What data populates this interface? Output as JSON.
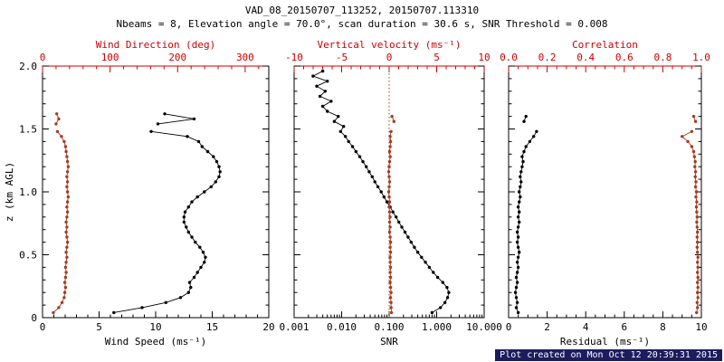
{
  "header": {
    "title": "VAD_08_20150707_113252, 20150707.113310",
    "subtitle": "Nbeams = 8, Elevation angle = 70.0°, scan duration = 30.6 s, SNR Threshold = 0.008"
  },
  "footer": {
    "created": "Plot created on Mon Oct 12 20:39:31 2015"
  },
  "colors": {
    "axis_red": "#cc0000",
    "frame": "#000000",
    "footer_bg": "#1c1c5e",
    "footer_fg": "#ffffff",
    "series": {
      "black": "#000000",
      "red": "#a63a20"
    }
  },
  "chart_data": [
    {
      "type": "line",
      "name": "wind-profile",
      "y_axis": {
        "label": "z (km AGL)",
        "min": 0,
        "max": 2,
        "minor_step": 0.1,
        "show_labels": true,
        "ticks": [
          0,
          0.5,
          1.0,
          1.5,
          2.0
        ],
        "tick_labels": [
          "0",
          "0.5",
          "1.0",
          "1.5",
          "2.0"
        ]
      },
      "bottom_axis": {
        "label": "Wind Speed (ms⁻¹)",
        "scale": "linear",
        "min": 0,
        "max": 20,
        "minor_step": 1,
        "ticks": [
          0,
          5,
          10,
          15,
          20
        ],
        "tick_labels": [
          "0",
          "5",
          "10",
          "15",
          "20"
        ]
      },
      "top_axis": {
        "label": "Wind Direction (deg)",
        "scale": "linear",
        "min": 0,
        "max": 335,
        "minor_step": 20,
        "ticks": [
          0,
          100,
          200,
          300
        ],
        "tick_labels": [
          "0",
          "100",
          "200",
          "300"
        ]
      },
      "series": [
        {
          "name": "wind-speed",
          "axis": "bottom",
          "color_key": "black",
          "z": [
            0.04,
            0.08,
            0.12,
            0.16,
            0.2,
            0.24,
            0.28,
            0.32,
            0.36,
            0.4,
            0.44,
            0.48,
            0.52,
            0.56,
            0.6,
            0.64,
            0.68,
            0.72,
            0.76,
            0.8,
            0.84,
            0.88,
            0.92,
            0.96,
            1.0,
            1.04,
            1.08,
            1.12,
            1.16,
            1.2,
            1.24,
            1.28,
            1.32,
            1.36,
            1.4,
            1.44,
            1.48,
            1.51,
            1.54,
            1.58,
            1.62
          ],
          "values": [
            6.3,
            8.8,
            10.9,
            12.2,
            12.9,
            13.1,
            13.0,
            13.4,
            13.7,
            14.0,
            14.3,
            14.4,
            14.2,
            13.9,
            13.5,
            13.2,
            12.9,
            12.7,
            12.5,
            12.5,
            12.6,
            12.9,
            13.2,
            13.7,
            14.3,
            14.9,
            15.3,
            15.6,
            15.7,
            15.6,
            15.4,
            15.1,
            14.6,
            14.1,
            13.8,
            12.8,
            9.6,
            null,
            10.2,
            13.4,
            10.8
          ]
        },
        {
          "name": "wind-direction",
          "axis": "top",
          "color_key": "red",
          "z": [
            0.04,
            0.08,
            0.12,
            0.16,
            0.2,
            0.24,
            0.28,
            0.32,
            0.36,
            0.4,
            0.44,
            0.48,
            0.52,
            0.56,
            0.6,
            0.64,
            0.68,
            0.72,
            0.76,
            0.8,
            0.84,
            0.88,
            0.92,
            0.96,
            1.0,
            1.04,
            1.08,
            1.12,
            1.16,
            1.2,
            1.24,
            1.28,
            1.32,
            1.36,
            1.4,
            1.44,
            1.48,
            1.51,
            1.54,
            1.58,
            1.62
          ],
          "values": [
            16,
            24,
            29,
            32,
            33,
            34,
            33,
            34,
            35,
            34,
            35,
            36,
            35,
            36,
            37,
            36,
            35,
            36,
            35,
            36,
            37,
            36,
            37,
            38,
            37,
            36,
            37,
            36,
            37,
            38,
            37,
            36,
            35,
            34,
            32,
            28,
            22,
            null,
            20,
            24,
            21
          ]
        }
      ]
    },
    {
      "type": "line",
      "name": "snr-profile",
      "y_axis": {
        "label": "",
        "min": 0,
        "max": 2,
        "minor_step": 0.1,
        "show_labels": false,
        "ticks": [
          0,
          0.5,
          1.0,
          1.5,
          2.0
        ],
        "tick_labels": [
          "0",
          "0.5",
          "1.0",
          "1.5",
          "2.0"
        ]
      },
      "bottom_axis": {
        "label": "SNR",
        "scale": "log",
        "min": 0.001,
        "max": 10,
        "ticks": [
          0.001,
          0.01,
          0.1,
          1,
          10
        ],
        "tick_labels": [
          "0.001",
          "0.010",
          "0.100",
          "1.000",
          "10.000"
        ]
      },
      "top_axis": {
        "label": "Vertical velocity (ms⁻¹)",
        "scale": "linear",
        "min": -10,
        "max": 10,
        "minor_step": 1,
        "ticks": [
          -10,
          -5,
          0,
          5,
          10
        ],
        "tick_labels": [
          "-10",
          "-5",
          "0",
          "5",
          "10"
        ]
      },
      "reference_line": {
        "axis": "top",
        "value": 0,
        "color_key": "red",
        "style": "dotted"
      },
      "series": [
        {
          "name": "snr",
          "axis": "bottom",
          "color_key": "black",
          "z": [
            0.04,
            0.08,
            0.12,
            0.16,
            0.2,
            0.24,
            0.28,
            0.32,
            0.36,
            0.4,
            0.44,
            0.48,
            0.52,
            0.56,
            0.6,
            0.64,
            0.68,
            0.72,
            0.76,
            0.8,
            0.84,
            0.88,
            0.92,
            0.96,
            1.0,
            1.04,
            1.08,
            1.12,
            1.16,
            1.2,
            1.24,
            1.28,
            1.32,
            1.36,
            1.4,
            1.44,
            1.48,
            1.52,
            1.56,
            1.6,
            1.64,
            1.68,
            1.72,
            1.76,
            1.8,
            1.84,
            1.88,
            1.92,
            1.96
          ],
          "values": [
            0.8,
            1.2,
            1.5,
            1.7,
            1.8,
            1.65,
            1.35,
            1.05,
            0.85,
            0.7,
            0.58,
            0.48,
            0.4,
            0.34,
            0.29,
            0.25,
            0.215,
            0.185,
            0.16,
            0.14,
            0.12,
            0.105,
            0.09,
            0.078,
            0.068,
            0.058,
            0.05,
            0.044,
            0.038,
            0.033,
            0.028,
            0.024,
            0.02,
            0.017,
            0.014,
            0.012,
            0.0095,
            0.011,
            0.007,
            0.0085,
            0.005,
            0.004,
            0.006,
            0.0035,
            0.0045,
            0.003,
            0.005,
            0.0025,
            0.004
          ]
        },
        {
          "name": "vertical-velocity",
          "axis": "top",
          "color_key": "red",
          "z": [
            0.04,
            0.08,
            0.12,
            0.16,
            0.2,
            0.24,
            0.28,
            0.32,
            0.36,
            0.4,
            0.44,
            0.48,
            0.52,
            0.56,
            0.6,
            0.64,
            0.68,
            0.72,
            0.76,
            0.8,
            0.84,
            0.88,
            0.92,
            0.96,
            1.0,
            1.04,
            1.08,
            1.12,
            1.16,
            1.2,
            1.24,
            1.28,
            1.32,
            1.36,
            1.4,
            1.44,
            1.48,
            1.52,
            1.56,
            1.6
          ],
          "values": [
            0.25,
            0.2,
            0.2,
            0.15,
            0.2,
            0.15,
            0.1,
            0.15,
            0.1,
            0.15,
            0.1,
            0.1,
            0.15,
            0.1,
            0.15,
            0.1,
            0.05,
            0.1,
            0.05,
            0.1,
            0.05,
            0.0,
            0.05,
            0.0,
            -0.05,
            0.0,
            0.05,
            0.0,
            -0.05,
            0.0,
            0.05,
            0.1,
            0.05,
            0.1,
            0.15,
            0.1,
            0.2,
            null,
            0.5,
            0.3
          ]
        }
      ]
    },
    {
      "type": "line",
      "name": "residual-profile",
      "y_axis": {
        "label": "",
        "min": 0,
        "max": 2,
        "minor_step": 0.1,
        "show_labels": false,
        "ticks": [
          0,
          0.5,
          1.0,
          1.5,
          2.0
        ],
        "tick_labels": [
          "0",
          "0.5",
          "1.0",
          "1.5",
          "2.0"
        ]
      },
      "bottom_axis": {
        "label": "Residual (ms⁻¹)",
        "scale": "linear",
        "min": 0,
        "max": 10,
        "minor_step": 0.5,
        "ticks": [
          0,
          2,
          4,
          6,
          8,
          10
        ],
        "tick_labels": [
          "0",
          "2",
          "4",
          "6",
          "8",
          "10"
        ]
      },
      "top_axis": {
        "label": "Correlation",
        "scale": "linear",
        "min": 0,
        "max": 1,
        "minor_step": 0.05,
        "ticks": [
          0,
          0.2,
          0.4,
          0.6,
          0.8,
          1.0
        ],
        "tick_labels": [
          "0.0",
          "0.2",
          "0.4",
          "0.6",
          "0.8",
          "1.0"
        ]
      },
      "series": [
        {
          "name": "residual",
          "axis": "bottom",
          "color_key": "black",
          "z": [
            0.04,
            0.08,
            0.12,
            0.16,
            0.2,
            0.24,
            0.28,
            0.32,
            0.36,
            0.4,
            0.44,
            0.48,
            0.52,
            0.56,
            0.6,
            0.64,
            0.68,
            0.72,
            0.76,
            0.8,
            0.84,
            0.88,
            0.92,
            0.96,
            1.0,
            1.04,
            1.08,
            1.12,
            1.16,
            1.2,
            1.24,
            1.28,
            1.32,
            1.36,
            1.4,
            1.44,
            1.48,
            1.52,
            1.56,
            1.6
          ],
          "values": [
            0.5,
            0.4,
            0.45,
            0.4,
            0.35,
            0.4,
            0.45,
            0.4,
            0.45,
            0.5,
            0.45,
            0.5,
            0.55,
            0.5,
            0.45,
            0.5,
            0.45,
            0.5,
            0.55,
            0.5,
            0.55,
            0.5,
            0.55,
            0.6,
            0.55,
            0.6,
            0.65,
            0.6,
            0.65,
            0.7,
            0.75,
            0.7,
            0.8,
            0.9,
            1.1,
            1.3,
            1.45,
            null,
            0.8,
            0.9
          ]
        },
        {
          "name": "correlation",
          "axis": "top",
          "color_key": "red",
          "z": [
            0.04,
            0.08,
            0.12,
            0.16,
            0.2,
            0.24,
            0.28,
            0.32,
            0.36,
            0.4,
            0.44,
            0.48,
            0.52,
            0.56,
            0.6,
            0.64,
            0.68,
            0.72,
            0.76,
            0.8,
            0.84,
            0.88,
            0.92,
            0.96,
            1.0,
            1.04,
            1.08,
            1.12,
            1.16,
            1.2,
            1.24,
            1.28,
            1.32,
            1.36,
            1.4,
            1.44,
            1.48,
            1.52,
            1.56,
            1.6
          ],
          "values": [
            0.975,
            0.98,
            0.978,
            0.982,
            0.98,
            0.982,
            0.98,
            0.982,
            0.98,
            0.982,
            0.98,
            0.982,
            0.98,
            0.978,
            0.98,
            0.978,
            0.98,
            0.978,
            0.976,
            0.978,
            0.976,
            0.974,
            0.976,
            0.972,
            0.974,
            0.97,
            0.972,
            0.968,
            0.97,
            0.966,
            0.968,
            0.964,
            0.96,
            0.95,
            0.93,
            0.9,
            0.95,
            null,
            0.97,
            0.96
          ]
        }
      ]
    }
  ]
}
